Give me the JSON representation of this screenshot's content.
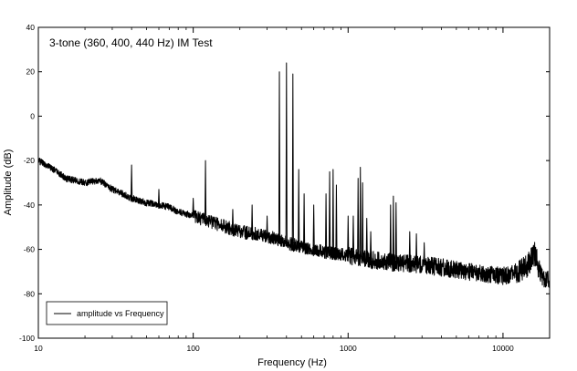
{
  "chart_data": {
    "type": "line",
    "title": "3-tone (360, 400, 440 Hz) IM Test",
    "xlabel": "Frequency (Hz)",
    "ylabel": "Amplitude (dB)",
    "xscale": "log",
    "xlim": [
      10,
      20000
    ],
    "ylim": [
      -100,
      40
    ],
    "xticks": [
      10,
      100,
      1000,
      10000
    ],
    "xtick_labels": [
      "10",
      "100",
      "1000",
      "10000"
    ],
    "yticks": [
      40,
      20,
      0,
      -20,
      -40,
      -60,
      -80,
      -100
    ],
    "ytick_labels": [
      "40",
      "20",
      "0",
      "-20",
      "-40",
      "-60",
      "-80",
      "-100"
    ],
    "grid": false,
    "legend": {
      "position": "bottom-left",
      "entries": [
        "amplitude vs Frequency"
      ]
    },
    "series": [
      {
        "name": "amplitude vs Frequency",
        "color": "#000000",
        "noise_floor": [
          [
            10,
            -20
          ],
          [
            12,
            -23
          ],
          [
            15,
            -28
          ],
          [
            20,
            -30
          ],
          [
            25,
            -29
          ],
          [
            30,
            -33
          ],
          [
            35,
            -35
          ],
          [
            40,
            -37
          ],
          [
            50,
            -39
          ],
          [
            60,
            -40
          ],
          [
            70,
            -41
          ],
          [
            80,
            -43
          ],
          [
            90,
            -44
          ],
          [
            100,
            -45
          ],
          [
            120,
            -47
          ],
          [
            150,
            -49
          ],
          [
            200,
            -52
          ],
          [
            250,
            -53
          ],
          [
            300,
            -54
          ],
          [
            400,
            -57
          ],
          [
            500,
            -59
          ],
          [
            700,
            -61
          ],
          [
            1000,
            -63
          ],
          [
            1500,
            -65
          ],
          [
            2000,
            -66
          ],
          [
            3000,
            -67
          ],
          [
            5000,
            -69
          ],
          [
            7000,
            -71
          ],
          [
            10000,
            -72
          ],
          [
            12000,
            -71
          ],
          [
            14000,
            -68
          ],
          [
            16000,
            -62
          ],
          [
            17000,
            -68
          ],
          [
            18000,
            -73
          ],
          [
            20000,
            -74
          ]
        ],
        "peaks": [
          [
            40,
            -22
          ],
          [
            60,
            -33
          ],
          [
            100,
            -37
          ],
          [
            120,
            -20
          ],
          [
            180,
            -42
          ],
          [
            240,
            -40
          ],
          [
            300,
            -45
          ],
          [
            360,
            20
          ],
          [
            400,
            24
          ],
          [
            440,
            19
          ],
          [
            480,
            -24
          ],
          [
            520,
            -35
          ],
          [
            600,
            -40
          ],
          [
            720,
            -35
          ],
          [
            760,
            -25
          ],
          [
            800,
            -24
          ],
          [
            840,
            -31
          ],
          [
            1000,
            -45
          ],
          [
            1080,
            -45
          ],
          [
            1160,
            -28
          ],
          [
            1200,
            -23
          ],
          [
            1240,
            -30
          ],
          [
            1320,
            -46
          ],
          [
            1400,
            -52
          ],
          [
            1880,
            -40
          ],
          [
            1960,
            -36
          ],
          [
            2040,
            -39
          ],
          [
            2500,
            -52
          ],
          [
            2760,
            -53
          ],
          [
            3100,
            -57
          ]
        ]
      }
    ]
  }
}
